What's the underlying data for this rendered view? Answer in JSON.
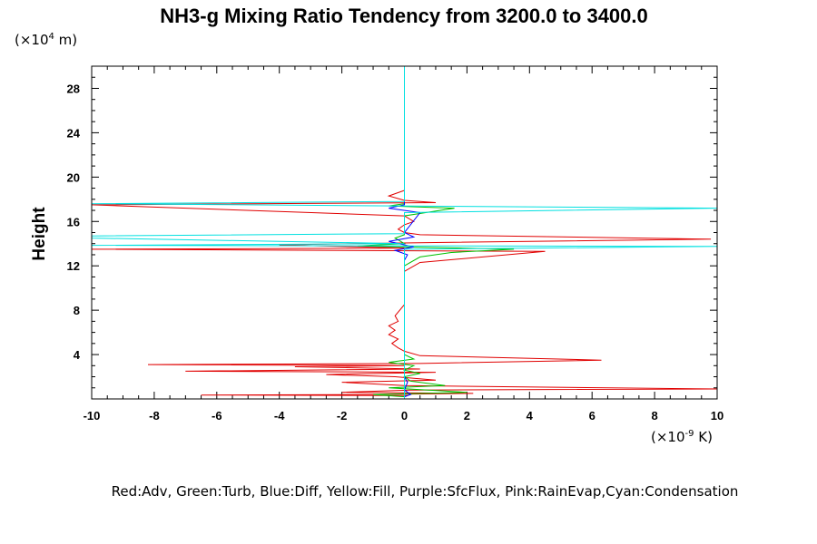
{
  "chart_data": {
    "type": "line",
    "title": "NH3-g Mixing Ratio Tendency from 3200.0 to 3400.0",
    "ylabel": "Height",
    "y_unit_prefix": "(×10",
    "y_unit_exp": "4",
    "y_unit_suffix": " m)",
    "x_unit_prefix": "(×10",
    "x_unit_exp": "-9",
    "x_unit_suffix": " K)",
    "xlim": [
      -10,
      10
    ],
    "ylim": [
      0,
      30
    ],
    "x_ticks": [
      -10,
      -8,
      -6,
      -4,
      -2,
      0,
      2,
      4,
      6,
      8,
      10
    ],
    "y_ticks": [
      4,
      8,
      12,
      16,
      20,
      24,
      28
    ],
    "legend_text": "Red:Adv, Green:Turb, Blue:Diff, Yellow:Fill, Purple:SfcFlux, Pink:RainEvap,Cyan:Condensation",
    "series": [
      {
        "name": "Adv",
        "color": "#e00000",
        "points": [
          [
            0.1,
            0.3
          ],
          [
            -6.5,
            0.35
          ],
          [
            -1,
            0.4
          ],
          [
            2.2,
            0.5
          ],
          [
            -2,
            0.6
          ],
          [
            0.2,
            0.8
          ],
          [
            10,
            0.9
          ],
          [
            0,
            1.2
          ],
          [
            -2,
            1.5
          ],
          [
            1,
            1.7
          ],
          [
            -0.3,
            2.0
          ],
          [
            -2.5,
            2.2
          ],
          [
            1,
            2.4
          ],
          [
            -7,
            2.5
          ],
          [
            0.5,
            2.7
          ],
          [
            -3.5,
            2.9
          ],
          [
            0,
            3.0
          ],
          [
            -8.2,
            3.1
          ],
          [
            0.5,
            3.2
          ],
          [
            6.3,
            3.5
          ],
          [
            0.5,
            3.9
          ],
          [
            0,
            4.3
          ],
          [
            -0.2,
            4.6
          ],
          [
            -0.4,
            5.0
          ],
          [
            -0.2,
            5.4
          ],
          [
            -0.5,
            5.8
          ],
          [
            -0.3,
            6.2
          ],
          [
            -0.5,
            6.6
          ],
          [
            -0.2,
            7.0
          ],
          [
            -0.3,
            7.5
          ],
          [
            0,
            8.5
          ],
          [
            0,
            9.5
          ],
          [
            0,
            10.5
          ],
          [
            0,
            11.5
          ],
          [
            0.5,
            12.3
          ],
          [
            4.5,
            13.3
          ],
          [
            -10,
            13.5
          ],
          [
            0,
            13.6
          ],
          [
            -4,
            13.9
          ],
          [
            1,
            14.1
          ],
          [
            9.8,
            14.4
          ],
          [
            0.5,
            14.8
          ],
          [
            0,
            15.0
          ],
          [
            -0.2,
            15.3
          ],
          [
            0,
            15.7
          ],
          [
            0.3,
            16.0
          ],
          [
            0,
            16.5
          ],
          [
            -10,
            17.5
          ],
          [
            1,
            17.7
          ],
          [
            0,
            17.9
          ],
          [
            -0.5,
            18.3
          ],
          [
            0,
            18.8
          ],
          [
            0,
            19.5
          ],
          [
            0,
            20.5
          ],
          [
            0,
            22
          ],
          [
            0,
            25
          ],
          [
            0,
            28
          ],
          [
            0,
            30
          ]
        ]
      },
      {
        "name": "Turb",
        "color": "#00c000",
        "points": [
          [
            0,
            0.2
          ],
          [
            -1,
            0.4
          ],
          [
            2,
            0.6
          ],
          [
            -0.5,
            1.0
          ],
          [
            1.3,
            1.2
          ],
          [
            0.2,
            1.6
          ],
          [
            0,
            2.0
          ],
          [
            0.5,
            2.3
          ],
          [
            0,
            2.6
          ],
          [
            0.3,
            3.0
          ],
          [
            -0.5,
            3.3
          ],
          [
            0.3,
            3.6
          ],
          [
            0,
            4.0
          ],
          [
            0,
            5
          ],
          [
            0,
            8
          ],
          [
            0,
            12
          ],
          [
            0.5,
            12.8
          ],
          [
            1.5,
            13.2
          ],
          [
            3.5,
            13.5
          ],
          [
            -1.5,
            13.8
          ],
          [
            0,
            14.0
          ],
          [
            -0.3,
            14.5
          ],
          [
            0,
            14.8
          ],
          [
            0,
            15.5
          ],
          [
            0,
            16.5
          ],
          [
            1.6,
            17.2
          ],
          [
            -0.5,
            17.4
          ],
          [
            0,
            17.6
          ],
          [
            0,
            20
          ],
          [
            0,
            30
          ]
        ]
      },
      {
        "name": "Diff",
        "color": "#0000ff",
        "points": [
          [
            0,
            0.2
          ],
          [
            0.2,
            0.4
          ],
          [
            0,
            0.8
          ],
          [
            0.1,
            1.5
          ],
          [
            0,
            2.0
          ],
          [
            0,
            12.5
          ],
          [
            0.1,
            13.0
          ],
          [
            -0.3,
            13.4
          ],
          [
            0.3,
            13.7
          ],
          [
            -0.5,
            14.2
          ],
          [
            0.3,
            14.6
          ],
          [
            0,
            15.0
          ],
          [
            0.5,
            16.8
          ],
          [
            -0.5,
            17.2
          ],
          [
            0,
            17.5
          ],
          [
            0,
            30
          ]
        ]
      },
      {
        "name": "Condensation",
        "color": "#00e0e0",
        "points": [
          [
            0,
            0
          ],
          [
            0,
            1
          ],
          [
            0,
            4
          ],
          [
            0,
            9
          ],
          [
            0,
            12
          ],
          [
            0,
            13.5
          ],
          [
            10,
            13.75
          ],
          [
            -10,
            13.85
          ],
          [
            0,
            14.0
          ],
          [
            -10,
            14.5
          ],
          [
            -10,
            14.7
          ],
          [
            0,
            14.9
          ],
          [
            0,
            16.8
          ],
          [
            10,
            17.2
          ],
          [
            -10,
            17.6
          ],
          [
            0,
            17.8
          ],
          [
            0,
            20
          ],
          [
            0,
            25
          ],
          [
            0,
            30
          ]
        ]
      }
    ]
  }
}
